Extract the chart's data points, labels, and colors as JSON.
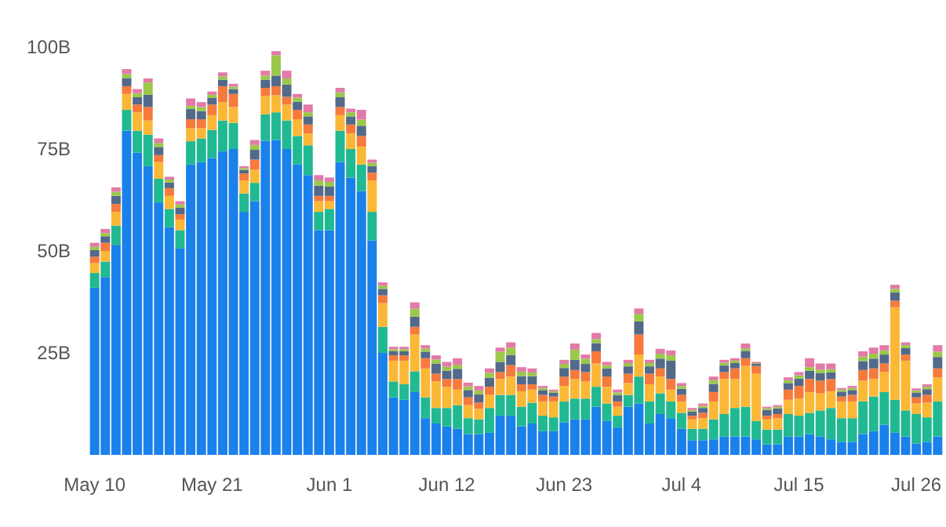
{
  "chart_data": {
    "type": "bar",
    "stacked": true,
    "categories": [
      "May 10",
      null,
      null,
      null,
      null,
      null,
      null,
      null,
      null,
      null,
      null,
      "May 21",
      null,
      null,
      null,
      null,
      null,
      null,
      null,
      null,
      null,
      null,
      "Jun 1",
      null,
      null,
      null,
      null,
      null,
      null,
      null,
      null,
      null,
      null,
      "Jun 12",
      null,
      null,
      null,
      null,
      null,
      null,
      null,
      null,
      null,
      null,
      "Jun 23",
      null,
      null,
      null,
      null,
      null,
      null,
      null,
      null,
      null,
      null,
      "Jul 4",
      null,
      null,
      null,
      null,
      null,
      null,
      null,
      null,
      null,
      null,
      "Jul 15",
      null,
      null,
      null,
      null,
      null,
      null,
      null,
      null,
      null,
      null,
      "Jul 26",
      null,
      null
    ],
    "ylim": [
      0,
      100
    ],
    "yticks": [
      {
        "value": 25,
        "label": "25B"
      },
      {
        "value": 50,
        "label": "50B"
      },
      {
        "value": 75,
        "label": "75B"
      },
      {
        "value": 100,
        "label": "100B"
      }
    ],
    "series": [
      {
        "color": "#1a80ea",
        "values": [
          41,
          43.6,
          51.5,
          79.5,
          74.1,
          70.8,
          61.9,
          55.8,
          50.6,
          71.2,
          71.8,
          72.8,
          74.4,
          75,
          59.6,
          62.2,
          77,
          77.2,
          75,
          71.2,
          68.6,
          55.1,
          55.1,
          71.8,
          68,
          64.7,
          52.6,
          25,
          14.1,
          13.5,
          15.4,
          9,
          7.7,
          7,
          6.4,
          5.1,
          5.1,
          5.4,
          9.6,
          9.6,
          7,
          7.7,
          5.8,
          5.8,
          8,
          8.7,
          8.7,
          11.8,
          8.3,
          6.7,
          11.8,
          12.6,
          7.7,
          10,
          9,
          6.4,
          3.6,
          3.6,
          3.8,
          4.5,
          4.5,
          4.5,
          3.8,
          2.6,
          2.6,
          4.5,
          4.5,
          5.1,
          4.5,
          3.8,
          3.2,
          3.2,
          5.1,
          5.8,
          7.4,
          5.4,
          4.5,
          2.8,
          3.2,
          4.5
        ]
      },
      {
        "color": "#20b992",
        "values": [
          3.6,
          3.8,
          4.7,
          5.1,
          5.4,
          7.7,
          5.8,
          4.5,
          4.5,
          5.7,
          5.8,
          6.9,
          7.6,
          6.4,
          4.5,
          4.5,
          6.5,
          6.8,
          7,
          7,
          7.3,
          4.5,
          5.2,
          7.7,
          7,
          6.5,
          7,
          6.4,
          3.9,
          3.8,
          5.1,
          5.1,
          3.8,
          4.5,
          5.8,
          3.9,
          3.6,
          6.1,
          5.1,
          5.1,
          4.8,
          5.1,
          3.8,
          3.4,
          5.1,
          5.1,
          5.1,
          4.9,
          4.3,
          2.9,
          2.9,
          6.6,
          5.4,
          5.1,
          4.1,
          3.9,
          2.8,
          2.8,
          4.9,
          5.5,
          7,
          7.3,
          4.5,
          3.6,
          3.6,
          5.5,
          5.1,
          5.2,
          6.4,
          7.7,
          5.8,
          5.8,
          8,
          8.5,
          8,
          8.1,
          6.4,
          7.2,
          6,
          8.6
        ]
      },
      {
        "color": "#fbb836",
        "values": [
          2.4,
          2.6,
          3.4,
          3.9,
          4.5,
          3.5,
          4.1,
          3.2,
          2.6,
          3.2,
          2.5,
          3.6,
          4.5,
          3.9,
          3.2,
          3.2,
          4.5,
          4.2,
          3.9,
          4.1,
          2.9,
          2.6,
          1.9,
          3.8,
          3.8,
          4.4,
          7.7,
          5.8,
          5.1,
          5.8,
          9,
          7.1,
          6.5,
          5.2,
          3.8,
          3.2,
          2.6,
          3.2,
          3.9,
          4.5,
          3.8,
          3.2,
          3.5,
          3.9,
          3.8,
          4.8,
          4.2,
          5.7,
          4.1,
          2.2,
          2.9,
          5.4,
          4.2,
          4.1,
          2.9,
          2.8,
          2.3,
          2.6,
          4.4,
          8.6,
          7.1,
          10,
          11.6,
          2.5,
          2.8,
          3.5,
          4.2,
          5.1,
          4.2,
          4.1,
          4.1,
          4.1,
          5.1,
          4.3,
          4.9,
          22.7,
          12.2,
          2.6,
          3.6,
          5.9
        ]
      },
      {
        "color": "#f57a3c",
        "values": [
          1.6,
          2,
          1.9,
          1.9,
          1.9,
          3.3,
          1.7,
          1.9,
          1.3,
          2.2,
          2.2,
          2.6,
          3.9,
          3.2,
          1.7,
          2.5,
          2,
          2.2,
          1.9,
          2.3,
          2.2,
          1.3,
          1.3,
          2,
          2.2,
          2.6,
          1.9,
          1.9,
          1.3,
          1.3,
          1.9,
          2.5,
          1.9,
          1.9,
          2.6,
          1.9,
          1.5,
          2,
          1.7,
          2.8,
          1.7,
          1.3,
          1.6,
          1.2,
          2.3,
          2.2,
          2.3,
          3,
          2.5,
          1.3,
          2.3,
          4.9,
          2.6,
          2,
          2.6,
          1.6,
          0.9,
          1.3,
          2.3,
          1.7,
          2.6,
          1.9,
          1.9,
          0.9,
          1,
          2.5,
          3.1,
          3.2,
          3.1,
          3,
          1.2,
          1.6,
          2.6,
          2.6,
          2.1,
          1.6,
          1.5,
          1.5,
          1.9,
          2.2
        ]
      },
      {
        "color": "#52698a",
        "values": [
          1.6,
          1.6,
          2,
          2,
          1.8,
          3,
          2,
          1.4,
          1.6,
          2.5,
          2,
          1.6,
          1.6,
          1.2,
          0.9,
          2.4,
          2,
          2.6,
          3,
          2,
          2,
          2.5,
          2.3,
          2.4,
          2,
          2.5,
          1.6,
          1.6,
          1,
          1,
          2.5,
          1.6,
          2.5,
          2,
          2.5,
          1.8,
          2,
          2.2,
          2.5,
          2.5,
          2,
          2,
          1.2,
          0.9,
          2.1,
          2.5,
          2,
          2,
          2,
          1.5,
          1.8,
          3.2,
          1.8,
          2.4,
          4.5,
          1.5,
          1,
          1.2,
          2,
          1.6,
          1.3,
          1.8,
          0.5,
          1.4,
          1.4,
          1.6,
          1.8,
          2,
          1.8,
          1.6,
          1.2,
          1.2,
          2.2,
          2.4,
          2.2,
          2,
          1.6,
          1.2,
          1.4,
          2.8
        ]
      },
      {
        "color": "#9bc84a",
        "values": [
          0.8,
          0.8,
          1,
          1,
          1,
          3,
          1,
          0.7,
          0.8,
          0.8,
          1,
          0.8,
          0.8,
          0.6,
          0.4,
          1.2,
          1,
          5,
          1.5,
          1,
          1,
          1.3,
          1.1,
          1.2,
          1,
          1.5,
          0.8,
          0.8,
          0.5,
          0.5,
          2,
          0.8,
          1,
          1,
          1,
          0.9,
          1,
          1.2,
          2.5,
          1.8,
          1.1,
          0.9,
          0.5,
          0.4,
          1,
          2.5,
          1.3,
          1,
          0.8,
          0.7,
          0.8,
          1.9,
          0.8,
          1.2,
          1.3,
          0.7,
          0.4,
          0.5,
          0.9,
          0.7,
          0.6,
          0.6,
          0.2,
          0.4,
          0.4,
          0.7,
          0.8,
          0.9,
          0.9,
          0.8,
          0.5,
          0.5,
          1.1,
          1.2,
          1,
          0.9,
          0.7,
          0.5,
          0.6,
          1.3
        ]
      },
      {
        "color": "#e37aa9",
        "values": [
          1,
          1,
          1.1,
          1.2,
          1,
          1,
          1.1,
          0.7,
          0.8,
          1.8,
          1.2,
          0.8,
          1,
          0.7,
          0.5,
          1.2,
          1.2,
          1,
          1.9,
          0.9,
          1.9,
          1.3,
          1.1,
          1.1,
          0.9,
          2.4,
          0.8,
          0.8,
          0.6,
          0.6,
          1.5,
          0.8,
          1,
          1.2,
          1.6,
          0.9,
          1.1,
          1.1,
          1,
          1.3,
          1.1,
          1,
          0.5,
          0.4,
          1,
          1.5,
          1,
          1.5,
          0.8,
          0.7,
          0.8,
          1.3,
          0.8,
          1.2,
          1.2,
          0.7,
          0.5,
          0.6,
          0.9,
          0.7,
          0.6,
          1.2,
          0.3,
          0.4,
          0.4,
          0.7,
          0.8,
          2.2,
          1.5,
          1.4,
          0.4,
          0.5,
          1.3,
          1.5,
          1.3,
          1,
          0.7,
          0.5,
          0.6,
          1.6
        ]
      }
    ]
  }
}
